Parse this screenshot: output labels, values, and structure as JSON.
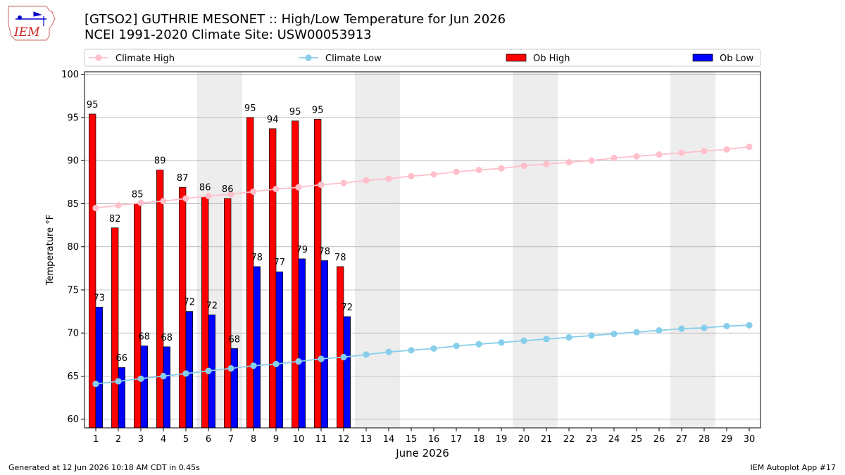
{
  "header": {
    "title_line1": "[GTSO2] GUTHRIE MESONET :: High/Low Temperature for Jun 2026",
    "title_line2": "NCEI 1991-2020 Climate Site: USW00053913",
    "logo_text": "IEM"
  },
  "footer": {
    "left": "Generated at 12 Jun 2026 10:18 AM CDT in 0.45s",
    "right": "IEM Autoplot App #17"
  },
  "chart_data": {
    "type": "bar",
    "xlabel": "June 2026",
    "ylabel": "Temperature °F",
    "xlim": [
      0.5,
      30.5
    ],
    "ylim": [
      59.0,
      100.3
    ],
    "yticks": [
      60,
      65,
      70,
      75,
      80,
      85,
      90,
      95,
      100
    ],
    "grid": "horizontal",
    "legend_placement": "top",
    "weekend_shading_days": [
      6,
      7,
      13,
      14,
      20,
      21,
      27,
      28
    ],
    "days": [
      1,
      2,
      3,
      4,
      5,
      6,
      7,
      8,
      9,
      10,
      11,
      12,
      13,
      14,
      15,
      16,
      17,
      18,
      19,
      20,
      21,
      22,
      23,
      24,
      25,
      26,
      27,
      28,
      29,
      30
    ],
    "legend": [
      "Climate High",
      "Climate Low",
      "Ob High",
      "Ob Low"
    ],
    "series": [
      {
        "name": "Ob High",
        "type": "bar",
        "color": "#ff0000",
        "values": [
          95.4,
          82.2,
          85.0,
          88.9,
          86.9,
          85.8,
          85.6,
          95.0,
          93.7,
          94.6,
          94.8,
          77.7
        ],
        "labels": [
          "95",
          "82",
          "85",
          "89",
          "87",
          "86",
          "86",
          "95",
          "94",
          "95",
          "95",
          "78"
        ]
      },
      {
        "name": "Ob Low",
        "type": "bar",
        "color": "#0000ff",
        "values": [
          73.0,
          66.0,
          68.5,
          68.4,
          72.5,
          72.1,
          68.2,
          77.7,
          77.1,
          78.6,
          78.4,
          71.9
        ],
        "labels": [
          "73",
          "66",
          "68",
          "68",
          "72",
          "72",
          "68",
          "78",
          "77",
          "79",
          "78",
          "72"
        ]
      },
      {
        "name": "Climate High",
        "type": "line",
        "color": "#ffc0cb",
        "values": [
          84.5,
          84.8,
          85.1,
          85.3,
          85.6,
          85.9,
          86.1,
          86.4,
          86.7,
          86.9,
          87.2,
          87.4,
          87.7,
          87.9,
          88.2,
          88.4,
          88.7,
          88.9,
          89.1,
          89.4,
          89.6,
          89.8,
          90.0,
          90.3,
          90.5,
          90.7,
          90.9,
          91.1,
          91.3,
          91.6
        ]
      },
      {
        "name": "Climate Low",
        "type": "line",
        "color": "#87ceeb",
        "values": [
          64.1,
          64.4,
          64.7,
          65.0,
          65.3,
          65.6,
          65.9,
          66.2,
          66.4,
          66.7,
          67.0,
          67.2,
          67.5,
          67.8,
          68.0,
          68.2,
          68.5,
          68.7,
          68.9,
          69.1,
          69.3,
          69.5,
          69.7,
          69.9,
          70.1,
          70.3,
          70.5,
          70.6,
          70.8,
          70.9
        ]
      }
    ]
  }
}
